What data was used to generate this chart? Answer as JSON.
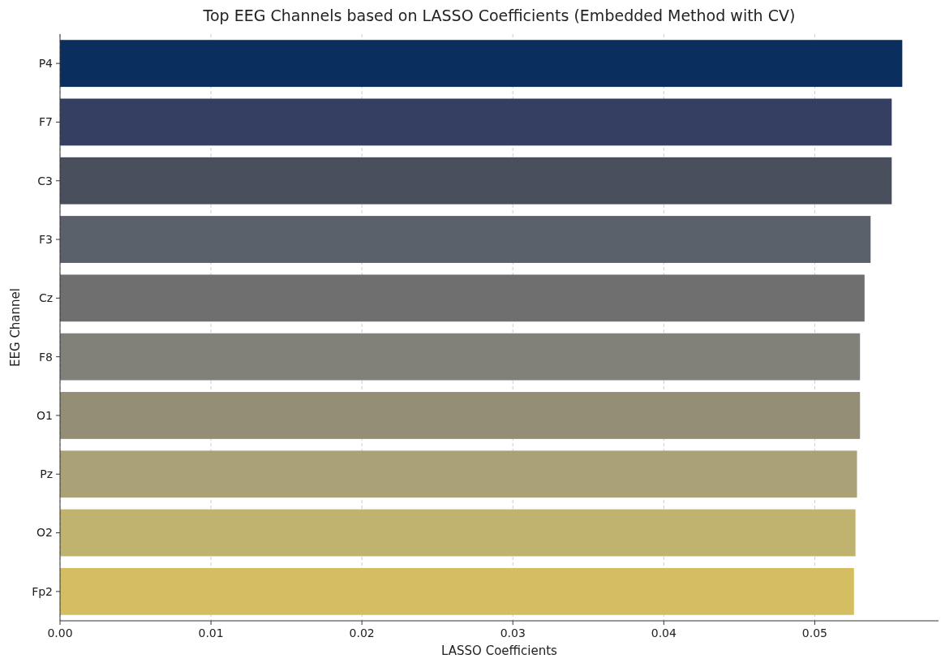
{
  "chart_data": {
    "type": "bar",
    "orientation": "horizontal",
    "title": "Top EEG Channels based on LASSO Coefficients (Embedded Method with CV)",
    "xlabel": "LASSO Coefficients",
    "ylabel": "EEG Channel",
    "categories": [
      "P4",
      "F7",
      "C3",
      "F3",
      "Cz",
      "F8",
      "O1",
      "Pz",
      "O2",
      "Fp2"
    ],
    "values": [
      0.0558,
      0.0551,
      0.0551,
      0.0537,
      0.0533,
      0.053,
      0.053,
      0.0528,
      0.0527,
      0.0526
    ],
    "colors": [
      "#0a2f5f",
      "#343f62",
      "#4a4f5e",
      "#5b616a",
      "#6f6f6f",
      "#81817a",
      "#948e76",
      "#aaa177",
      "#bfb36f",
      "#d4be61"
    ],
    "xlim": [
      0,
      0.0582
    ],
    "xticks": [
      {
        "value": 0,
        "label": "0.00"
      },
      {
        "value": 0.01,
        "label": "0.01"
      },
      {
        "value": 0.02,
        "label": "0.02"
      },
      {
        "value": 0.03,
        "label": "0.03"
      },
      {
        "value": 0.04,
        "label": "0.04"
      },
      {
        "value": 0.05,
        "label": "0.05"
      }
    ],
    "grid": "x"
  }
}
